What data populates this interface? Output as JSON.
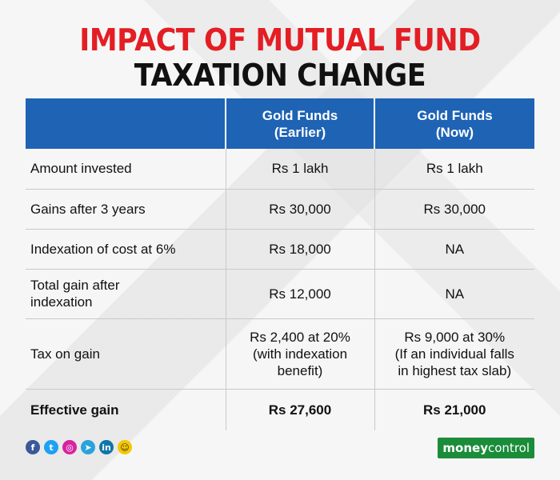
{
  "title": {
    "line1": "IMPACT OF MUTUAL FUND",
    "line2": "TAXATION CHANGE"
  },
  "table": {
    "headers": [
      "",
      "Gold Funds\n(Earlier)",
      "Gold Funds\n(Now)"
    ],
    "header_lines": [
      [
        "Gold Funds",
        "(Earlier)"
      ],
      [
        "Gold Funds",
        "(Now)"
      ]
    ],
    "rows": [
      {
        "label": "Amount invested",
        "earlier": "Rs 1 lakh",
        "now": "Rs 1 lakh"
      },
      {
        "label": "Gains after 3 years",
        "earlier": "Rs 30,000",
        "now": "Rs 30,000"
      },
      {
        "label": "Indexation of cost at 6%",
        "earlier": "Rs 18,000",
        "now": "NA"
      },
      {
        "label_lines": [
          "Total gain after",
          "indexation"
        ],
        "earlier": "Rs 12,000",
        "now": "NA"
      },
      {
        "label": "Tax on gain",
        "earlier_lines": [
          "Rs 2,400 at 20%",
          "(with indexation",
          "benefit)"
        ],
        "now_lines": [
          "Rs 9,000 at 30%",
          "(If an individual falls",
          "in highest tax slab)"
        ]
      },
      {
        "label": "Effective gain",
        "earlier": "Rs 27,600",
        "now": "Rs 21,000"
      }
    ]
  },
  "footer": {
    "social_icons": [
      {
        "name": "facebook-icon",
        "glyph": "f",
        "color": "#3b5998"
      },
      {
        "name": "twitter-icon",
        "glyph": "t",
        "color": "#1da1f2"
      },
      {
        "name": "instagram-icon",
        "glyph": "◎",
        "color": "#d6249f"
      },
      {
        "name": "telegram-icon",
        "glyph": "➤",
        "color": "#2aa3dc"
      },
      {
        "name": "linkedin-icon",
        "glyph": "in",
        "color": "#0e76a8"
      },
      {
        "name": "snapchat-icon",
        "glyph": "☺",
        "color": "#f5c800"
      }
    ],
    "brand_money": "money",
    "brand_control": "control"
  },
  "colors": {
    "title_red": "#e31e24",
    "header_blue": "#1e63b4",
    "brand_green": "#1a8c3a"
  }
}
